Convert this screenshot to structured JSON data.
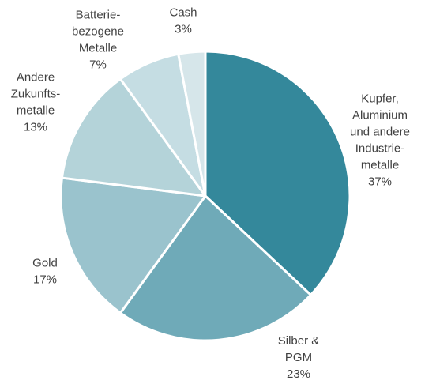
{
  "chart_data": {
    "type": "pie",
    "title": "",
    "start_angle_deg": 0,
    "direction": "clockwise",
    "slices": [
      {
        "label_lines": [
          "Kupfer,",
          "Aluminium",
          "und andere",
          "Industrie-",
          "metalle"
        ],
        "value": 37,
        "value_label": "37%",
        "color": "#34889b"
      },
      {
        "label_lines": [
          "Silber &",
          "PGM"
        ],
        "value": 23,
        "value_label": "23%",
        "color": "#6faab8"
      },
      {
        "label_lines": [
          "Gold"
        ],
        "value": 17,
        "value_label": "17%",
        "color": "#9ac3cd"
      },
      {
        "label_lines": [
          "Andere",
          "Zukunfts-",
          "metalle"
        ],
        "value": 13,
        "value_label": "13%",
        "color": "#b4d3d9"
      },
      {
        "label_lines": [
          "Batterie-",
          "bezogene",
          "Metalle"
        ],
        "value": 7,
        "value_label": "7%",
        "color": "#c5dde3"
      },
      {
        "label_lines": [
          "Cash"
        ],
        "value": 3,
        "value_label": "3%",
        "color": "#d6e6ea"
      }
    ]
  }
}
